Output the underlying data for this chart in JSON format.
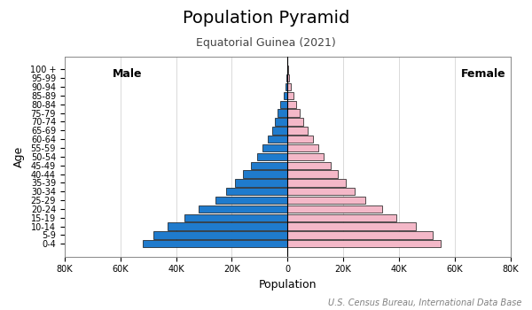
{
  "title": "Population Pyramid",
  "subtitle": "Equatorial Guinea (2021)",
  "xlabel": "Population",
  "ylabel": "Age",
  "footnote": "U.S. Census Bureau, International Data Base",
  "age_groups": [
    "0-4",
    "5-9",
    "10-14",
    "15-19",
    "20-24",
    "25-29",
    "30-34",
    "35-39",
    "40-44",
    "45-49",
    "50-54",
    "55-59",
    "60-64",
    "65-69",
    "70-74",
    "75-79",
    "80-84",
    "85-89",
    "90-94",
    "95-99",
    "100 +"
  ],
  "male": [
    52000,
    48000,
    43000,
    37000,
    32000,
    26000,
    22000,
    19000,
    16000,
    13000,
    11000,
    9000,
    7000,
    5500,
    4500,
    3500,
    2500,
    1500,
    800,
    400,
    200
  ],
  "female": [
    55000,
    52000,
    46000,
    39000,
    34000,
    28000,
    24000,
    21000,
    18000,
    15500,
    13000,
    11000,
    9000,
    7200,
    5800,
    4500,
    3200,
    2000,
    1100,
    600,
    300
  ],
  "male_color": "#1f7bcd",
  "female_color": "#f4b8c8",
  "bar_edgecolor": "#111111",
  "bar_edgewidth": 0.5,
  "xlim": 80000,
  "xticks": [
    -80000,
    -60000,
    -40000,
    -20000,
    0,
    20000,
    40000,
    60000,
    80000
  ],
  "xticklabels": [
    "80K",
    "60K",
    "40K",
    "20K",
    "0",
    "20K",
    "40K",
    "60K",
    "80K"
  ],
  "male_label": "Male",
  "female_label": "Female",
  "bg_color": "#ffffff",
  "spine_color": "#888888",
  "grid_color": "#cccccc",
  "title_fontsize": 14,
  "subtitle_fontsize": 9,
  "label_fontsize": 9,
  "tick_fontsize": 7,
  "footnote_fontsize": 7
}
